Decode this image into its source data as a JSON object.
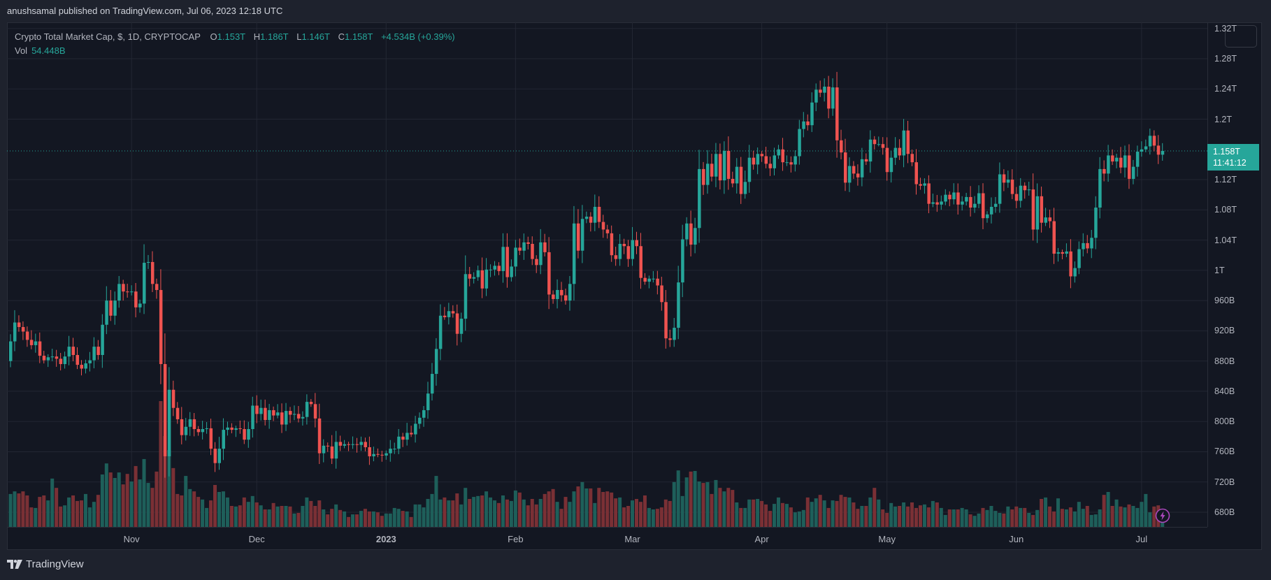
{
  "header": {
    "published": "anushsamal published on TradingView.com, Jul 06, 2023 12:18 UTC"
  },
  "legend": {
    "symbol": "Crypto Total Market Cap, $, 1D, CRYPTOCAP",
    "o_label": "O",
    "o": "1.153T",
    "h_label": "H",
    "h": "1.186T",
    "l_label": "L",
    "l": "1.146T",
    "c_label": "C",
    "c": "1.158T",
    "change": "+4.534B (+0.39%)",
    "vol_label": "Vol",
    "vol": "54.448B"
  },
  "last_price": {
    "price": "1.158T",
    "countdown": "11:41:12",
    "value": 1158
  },
  "logo": {
    "text": "TradingView"
  },
  "colors": {
    "up": "#26a69a",
    "down": "#ef5350",
    "grid": "#232733",
    "vol_up": "#1e5f5a",
    "vol_down": "#7a3035"
  },
  "chart_data": {
    "type": "candlestick",
    "title": "Crypto Total Market Cap, $, 1D, CRYPTOCAP",
    "unit": "B USD",
    "ylim": [
      665,
      1330
    ],
    "price_ticks": [
      {
        "value": 1320,
        "label": "1.32T"
      },
      {
        "value": 1280,
        "label": "1.28T"
      },
      {
        "value": 1240,
        "label": "1.24T"
      },
      {
        "value": 1200,
        "label": "1.2T"
      },
      {
        "value": 1120,
        "label": "1.12T"
      },
      {
        "value": 1080,
        "label": "1.08T"
      },
      {
        "value": 1040,
        "label": "1.04T"
      },
      {
        "value": 1000,
        "label": "1T"
      },
      {
        "value": 960,
        "label": "960B"
      },
      {
        "value": 920,
        "label": "920B"
      },
      {
        "value": 880,
        "label": "880B"
      },
      {
        "value": 840,
        "label": "840B"
      },
      {
        "value": 800,
        "label": "800B"
      },
      {
        "value": 760,
        "label": "760B"
      },
      {
        "value": 720,
        "label": "720B"
      },
      {
        "value": 680,
        "label": "680B"
      }
    ],
    "time_ticks": [
      {
        "index": 29,
        "label": "Nov"
      },
      {
        "index": 59,
        "label": "Dec"
      },
      {
        "index": 90,
        "label": "2023",
        "bold": true
      },
      {
        "index": 121,
        "label": "Feb"
      },
      {
        "index": 149,
        "label": "Mar"
      },
      {
        "index": 180,
        "label": "Apr"
      },
      {
        "index": 210,
        "label": "May"
      },
      {
        "index": 241,
        "label": "Jun"
      },
      {
        "index": 271,
        "label": "Jul"
      }
    ],
    "first_open": 880,
    "closes": [
      906,
      931,
      925,
      919,
      908,
      901,
      906,
      887,
      881,
      885,
      886,
      883,
      876,
      886,
      899,
      888,
      875,
      870,
      877,
      881,
      899,
      888,
      928,
      960,
      940,
      960,
      982,
      972,
      971,
      972,
      951,
      956,
      1010,
      1011,
      982,
      974,
      876,
      754,
      842,
      818,
      803,
      782,
      793,
      803,
      790,
      786,
      790,
      791,
      764,
      745,
      764,
      789,
      792,
      789,
      791,
      790,
      776,
      790,
      821,
      810,
      818,
      802,
      815,
      808,
      812,
      796,
      814,
      809,
      810,
      804,
      806,
      826,
      823,
      804,
      758,
      768,
      767,
      751,
      773,
      768,
      770,
      769,
      770,
      769,
      773,
      766,
      754,
      757,
      756,
      755,
      758,
      764,
      764,
      780,
      776,
      785,
      783,
      797,
      805,
      815,
      837,
      863,
      896,
      940,
      938,
      946,
      943,
      916,
      936,
      995,
      989,
      991,
      1000,
      976,
      1001,
      1001,
      1006,
      999,
      1031,
      991,
      1005,
      1030,
      1026,
      1037,
      1035,
      1015,
      1007,
      1037,
      1024,
      968,
      962,
      974,
      967,
      960,
      982,
      1062,
      1026,
      1068,
      1071,
      1063,
      1084,
      1064,
      1054,
      1049,
      1020,
      1015,
      1035,
      1032,
      1015,
      1040,
      1032,
      990,
      985,
      989,
      989,
      980,
      958,
      910,
      908,
      924,
      984,
      1041,
      1062,
      1034,
      1056,
      1134,
      1113,
      1141,
      1124,
      1154,
      1119,
      1158,
      1121,
      1115,
      1137,
      1101,
      1117,
      1149,
      1140,
      1154,
      1151,
      1141,
      1135,
      1152,
      1160,
      1143,
      1143,
      1140,
      1151,
      1187,
      1197,
      1192,
      1222,
      1239,
      1235,
      1243,
      1214,
      1242,
      1172,
      1156,
      1116,
      1138,
      1128,
      1123,
      1147,
      1144,
      1173,
      1167,
      1167,
      1162,
      1130,
      1149,
      1162,
      1152,
      1185,
      1154,
      1143,
      1114,
      1112,
      1115,
      1088,
      1090,
      1087,
      1091,
      1100,
      1094,
      1103,
      1087,
      1091,
      1097,
      1083,
      1088,
      1102,
      1069,
      1074,
      1084,
      1088,
      1127,
      1116,
      1120,
      1101,
      1092,
      1112,
      1106,
      1107,
      1054,
      1098,
      1063,
      1070,
      1065,
      1022,
      1024,
      1022,
      1025,
      992,
      1003,
      1028,
      1036,
      1029,
      1043,
      1083,
      1134,
      1128,
      1152,
      1144,
      1149,
      1136,
      1152,
      1121,
      1137,
      1157,
      1160,
      1164,
      1178,
      1165,
      1153,
      1158
    ],
    "volumes": [
      113,
      122,
      115,
      122,
      108,
      67,
      65,
      103,
      108,
      91,
      166,
      134,
      70,
      74,
      101,
      108,
      89,
      91,
      113,
      67,
      86,
      110,
      180,
      218,
      187,
      168,
      187,
      146,
      182,
      156,
      209,
      163,
      233,
      151,
      134,
      190,
      432,
      312,
      264,
      202,
      113,
      108,
      175,
      130,
      122,
      103,
      94,
      65,
      91,
      144,
      120,
      122,
      101,
      72,
      70,
      74,
      101,
      86,
      106,
      84,
      74,
      60,
      60,
      82,
      70,
      72,
      72,
      70,
      46,
      48,
      72,
      101,
      89,
      72,
      91,
      60,
      43,
      62,
      77,
      58,
      53,
      34,
      43,
      43,
      55,
      62,
      53,
      53,
      50,
      38,
      46,
      46,
      65,
      62,
      55,
      53,
      34,
      77,
      77,
      67,
      96,
      113,
      175,
      94,
      101,
      91,
      91,
      115,
      77,
      134,
      96,
      103,
      106,
      108,
      122,
      101,
      91,
      82,
      108,
      94,
      89,
      125,
      118,
      94,
      74,
      96,
      77,
      96,
      113,
      122,
      130,
      86,
      62,
      103,
      86,
      122,
      139,
      154,
      132,
      132,
      82,
      134,
      120,
      122,
      118,
      98,
      101,
      67,
      72,
      91,
      96,
      86,
      108,
      65,
      60,
      62,
      67,
      94,
      89,
      154,
      194,
      106,
      170,
      190,
      192,
      156,
      151,
      154,
      113,
      161,
      134,
      122,
      134,
      127,
      84,
      65,
      65,
      94,
      94,
      96,
      89,
      77,
      55,
      79,
      101,
      82,
      79,
      67,
      50,
      53,
      58,
      101,
      86,
      98,
      110,
      91,
      65,
      91,
      89,
      110,
      103,
      101,
      84,
      62,
      72,
      72,
      101,
      134,
      94,
      60,
      48,
      82,
      70,
      72,
      84,
      70,
      84,
      65,
      74,
      77,
      67,
      89,
      84,
      65,
      41,
      60,
      60,
      60,
      65,
      60,
      43,
      38,
      46,
      65,
      58,
      72,
      55,
      48,
      46,
      70,
      60,
      70,
      65,
      65,
      48,
      41,
      58,
      96,
      101,
      70,
      53,
      98,
      62,
      60,
      67,
      53,
      86,
      62,
      72,
      41,
      43,
      60,
      110,
      120,
      72,
      94,
      70,
      67,
      77,
      72,
      65,
      86,
      113,
      50,
      70,
      74,
      54.448
    ]
  }
}
